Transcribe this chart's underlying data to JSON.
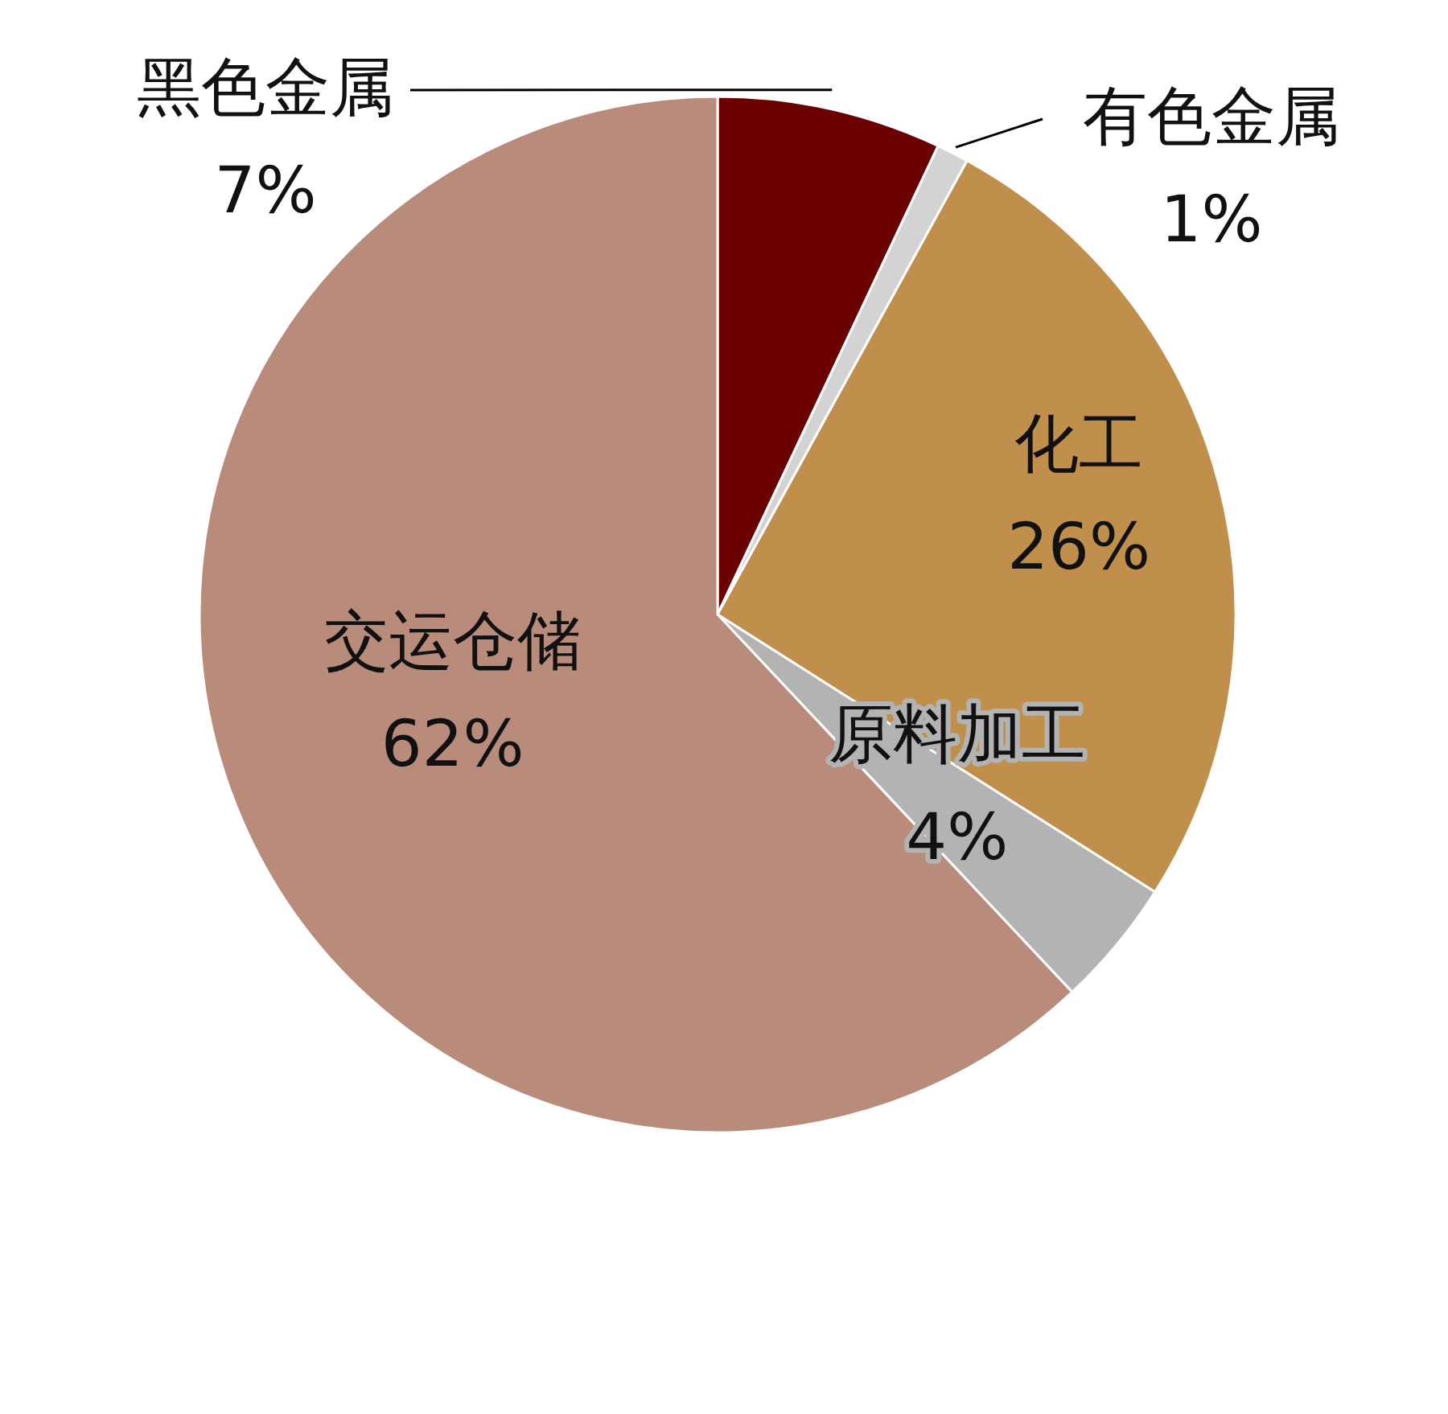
{
  "chart_data": {
    "type": "pie",
    "categories": [
      "黑色金属",
      "有色金属",
      "化工",
      "原料加工",
      "交运仓储"
    ],
    "values": [
      7,
      1,
      26,
      4,
      62
    ],
    "colors": [
      "#6b0000",
      "#d3d3d3",
      "#c08f4c",
      "#b3b3b3",
      "#b88b7a"
    ],
    "value_labels": [
      "7%",
      "1%",
      "26%",
      "4%",
      "62%"
    ]
  }
}
